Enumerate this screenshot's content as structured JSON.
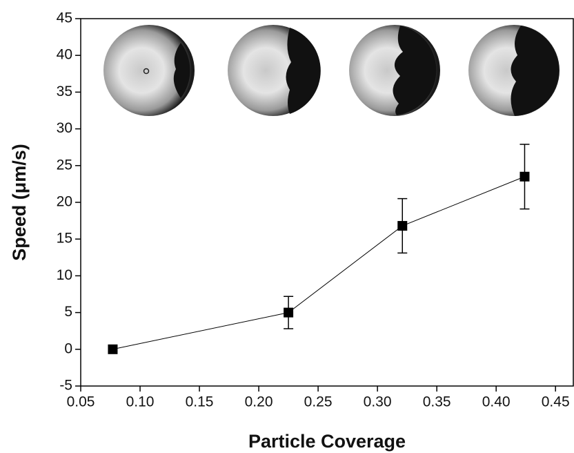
{
  "chart_data": {
    "type": "line",
    "x_label": "Particle Coverage",
    "y_label": "Speed (μm/s)",
    "x": [
      0.077,
      0.225,
      0.321,
      0.424
    ],
    "series": [
      {
        "color": "#000000",
        "values": [
          0,
          5,
          16.8,
          23.5
        ],
        "errors": [
          0,
          2.2,
          3.7,
          4.4
        ]
      }
    ],
    "xlim": [
      0.05,
      0.465
    ],
    "xticks": [
      0.05,
      {
        "value": 0.1,
        "label": "0.10"
      },
      0.15,
      {
        "value": 0.2,
        "label": "0.20"
      },
      0.25,
      {
        "value": 0.3,
        "label": "0.30"
      },
      0.35,
      {
        "value": 0.4,
        "label": "0.40"
      },
      0.45
    ],
    "ylim": [
      -5,
      45
    ],
    "yticks": [
      -5,
      0,
      5,
      10,
      15,
      20,
      25,
      30,
      35,
      40,
      45
    ]
  }
}
